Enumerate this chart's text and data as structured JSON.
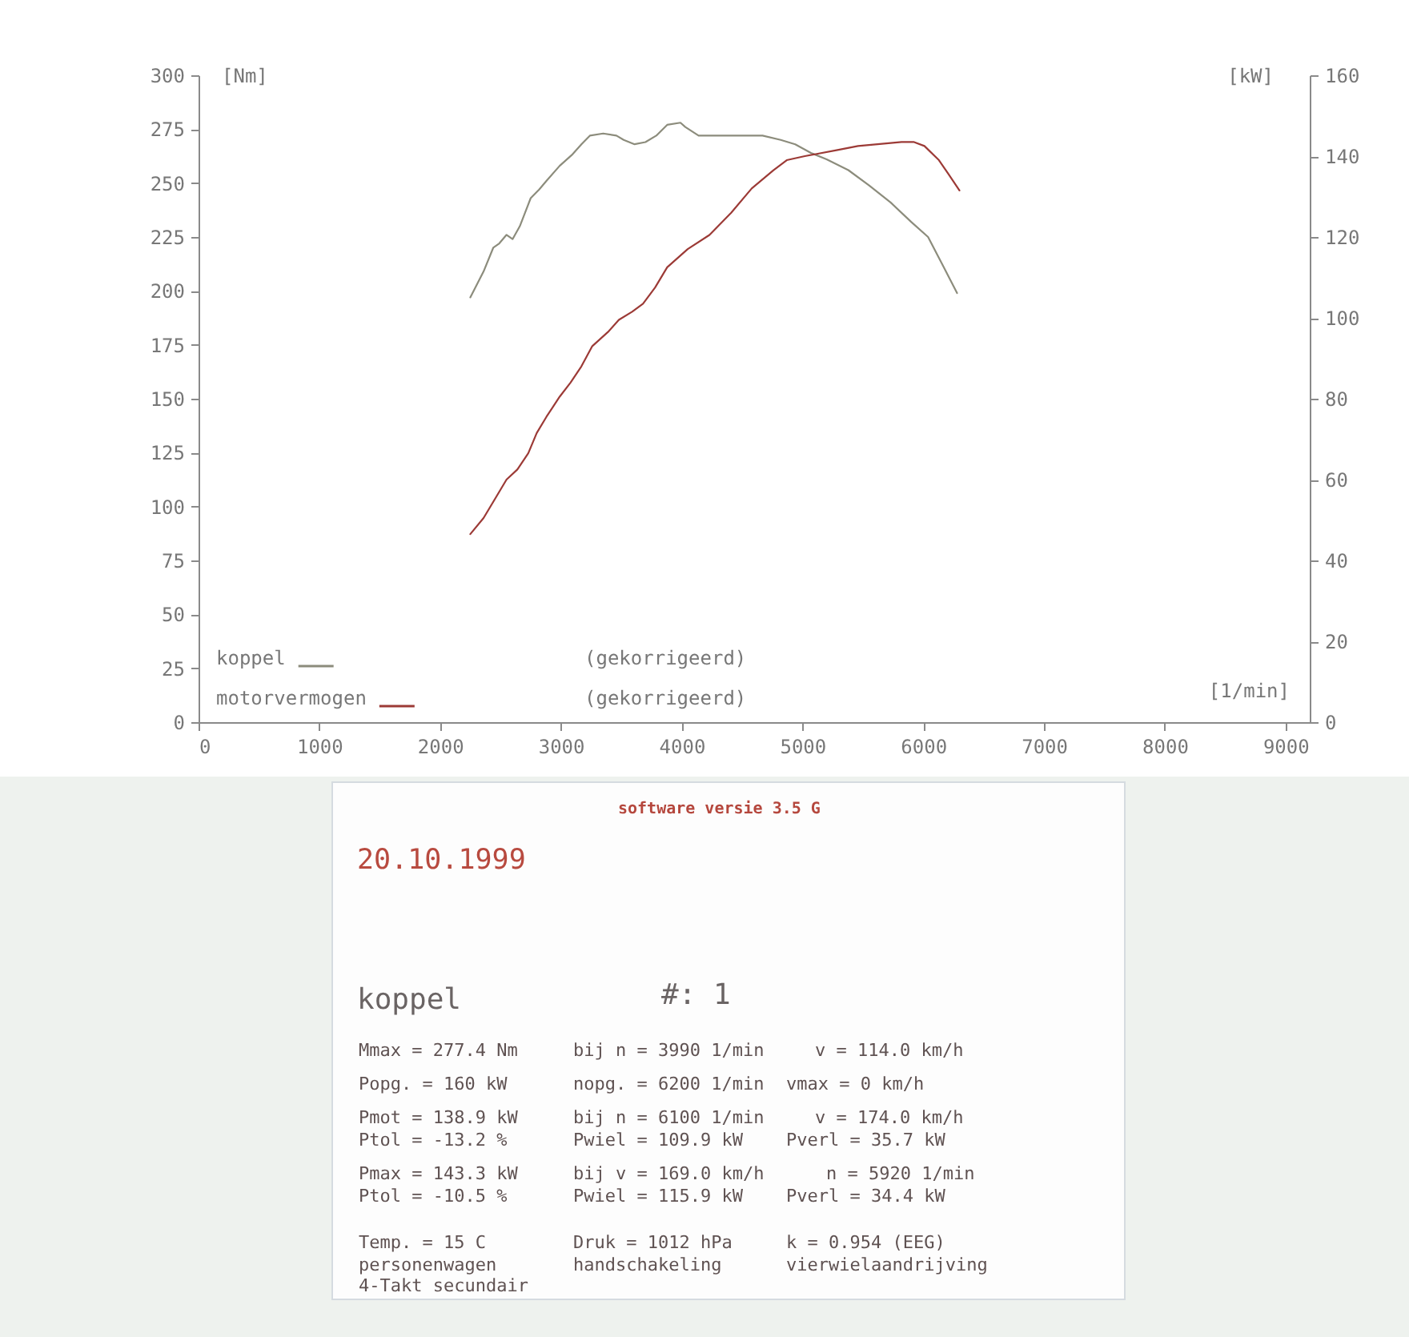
{
  "chart_data": [
    {
      "type": "line",
      "xlabel": "[1/min]",
      "ylabel": "[Nm]",
      "y2label": "[kW]",
      "xlim": [
        0,
        9200
      ],
      "xticks": [
        0,
        1000,
        2000,
        3000,
        4000,
        5000,
        6000,
        7000,
        8000,
        9000
      ],
      "ylim": [
        0,
        300
      ],
      "yticks": [
        0,
        25,
        50,
        75,
        100,
        125,
        150,
        175,
        200,
        225,
        250,
        275,
        300
      ],
      "y2lim": [
        0,
        160
      ],
      "y2ticks": [
        0,
        20,
        40,
        60,
        80,
        100,
        120,
        140,
        160
      ],
      "legend": "bottom left",
      "annotations": [
        "(gekorrigeerd)",
        "(gekorrigeerd)"
      ],
      "series": [
        {
          "name": "koppel",
          "color": "#8c8c7c",
          "x": [
            2250,
            2360,
            2440,
            2490,
            2550,
            2600,
            2660,
            2750,
            2820,
            2880,
            2990,
            3090,
            3170,
            3240,
            3350,
            3460,
            3520,
            3610,
            3700,
            3790,
            3880,
            3990,
            4030,
            4140,
            4320,
            4490,
            4670,
            4820,
            4940,
            5070,
            5200,
            5380,
            5550,
            5730,
            5900,
            6040,
            6170,
            6280
          ],
          "values": [
            197,
            209,
            220,
            222,
            226,
            224,
            230,
            243,
            247,
            251,
            258,
            263,
            268,
            272,
            273,
            272,
            270,
            268,
            269,
            272,
            277,
            278,
            276,
            272,
            272,
            272,
            272,
            270,
            268,
            264,
            261,
            256,
            249,
            241,
            232,
            225,
            211,
            199
          ]
        },
        {
          "name": "motorvermogen",
          "color": "#9c3a36",
          "axis": "y2",
          "x": [
            2250,
            2360,
            2470,
            2550,
            2640,
            2730,
            2800,
            2880,
            2990,
            3080,
            3170,
            3260,
            3390,
            3480,
            3590,
            3680,
            3780,
            3880,
            4050,
            4230,
            4410,
            4580,
            4760,
            4870,
            5020,
            5110,
            5290,
            5460,
            5640,
            5820,
            5920,
            6010,
            6130,
            6210,
            6300
          ],
          "values": [
            46.5,
            50.5,
            56,
            60,
            62.5,
            66.5,
            71.5,
            75.5,
            80.5,
            84,
            88,
            93,
            96.5,
            99.5,
            101.5,
            103.5,
            107.5,
            112.5,
            117,
            120.5,
            126,
            132,
            136.5,
            139,
            140,
            140.5,
            141.5,
            142.5,
            143,
            143.5,
            143.5,
            142.5,
            139,
            135.5,
            131.5
          ]
        }
      ]
    },
    {
      "type": "other",
      "annotations": [
        "software versie 3.5 G",
        "20.10.1999",
        "koppel",
        "#: 1",
        "Mmax = 277.4 Nm",
        "bij n = 3990 1/min",
        "v = 114.0 km/h",
        "Popg. = 160 kW",
        "nopg. = 6200 1/min",
        "vmax = 0 km/h",
        "Pmot = 138.9 kW",
        "bij n = 6100 1/min",
        "v = 174.0 km/h",
        "Ptol = -13.2 %",
        "Pwiel = 109.9 kW",
        "Pverl = 35.7 kW",
        "Pmax = 143.3 kW",
        "bij v = 169.0 km/h",
        "n = 5920 1/min",
        "Ptol = -10.5 %",
        "Pwiel = 115.9 kW",
        "Pverl = 34.4 kW",
        "Temp. = 15 C",
        "Druk = 1012 hPa",
        "k = 0.954 (EEG)",
        "personenwagen",
        "handschakeling",
        "vierwielaandrijving",
        "4-Takt secundair"
      ]
    }
  ]
}
